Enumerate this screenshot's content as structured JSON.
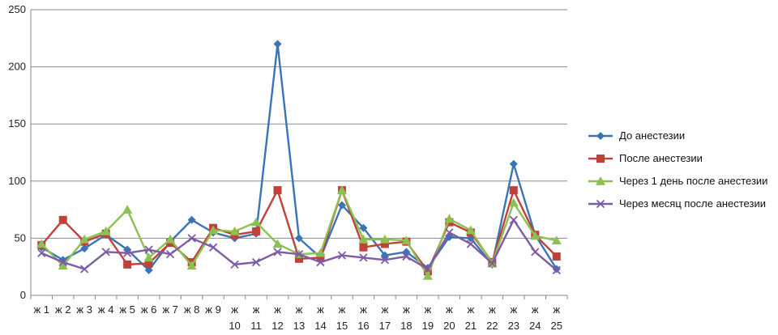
{
  "chart_data": {
    "type": "line",
    "categories": [
      [
        "ж 1"
      ],
      [
        "ж 2"
      ],
      [
        "ж 3"
      ],
      [
        "ж 4"
      ],
      [
        "ж 5"
      ],
      [
        "ж 6"
      ],
      [
        "ж 7"
      ],
      [
        "ж 8"
      ],
      [
        "ж 9"
      ],
      [
        "ж",
        "10"
      ],
      [
        "ж",
        "11"
      ],
      [
        "ж",
        "12"
      ],
      [
        "ж",
        "13"
      ],
      [
        "ж",
        "14"
      ],
      [
        "ж",
        "15"
      ],
      [
        "ж",
        "16"
      ],
      [
        "ж",
        "17"
      ],
      [
        "ж",
        "18"
      ],
      [
        "ж",
        "19"
      ],
      [
        "ж",
        "20"
      ],
      [
        "ж",
        "21"
      ],
      [
        "ж",
        "22"
      ],
      [
        "ж",
        "23"
      ],
      [
        "ж",
        "24"
      ],
      [
        "ж",
        "25"
      ]
    ],
    "ylim": [
      0,
      250
    ],
    "yticks": [
      0,
      50,
      100,
      150,
      200,
      250
    ],
    "grid": true,
    "legend_position": "right",
    "series": [
      {
        "name": "До анестезии",
        "color": "#3A74B6",
        "marker": "diamond",
        "values": [
          42,
          31,
          41,
          53,
          40,
          22,
          47,
          66,
          55,
          50,
          54,
          220,
          50,
          33,
          79,
          59,
          35,
          38,
          24,
          51,
          50,
          27,
          115,
          53,
          23
        ]
      },
      {
        "name": "После анестезии",
        "color": "#C2403A",
        "marker": "square",
        "values": [
          44,
          66,
          47,
          54,
          27,
          28,
          46,
          29,
          59,
          53,
          56,
          92,
          32,
          33,
          92,
          42,
          45,
          47,
          21,
          64,
          55,
          29,
          92,
          53,
          34
        ]
      },
      {
        "name": "Через 1 день после анестезии",
        "color": "#8CC152",
        "marker": "triangle",
        "values": [
          45,
          26,
          49,
          56,
          75,
          33,
          49,
          26,
          57,
          56,
          64,
          45,
          36,
          37,
          92,
          49,
          49,
          48,
          17,
          67,
          57,
          28,
          81,
          52,
          48
        ]
      },
      {
        "name": "Через месяц после анестезии",
        "color": "#7E5CA5",
        "marker": "x",
        "values": [
          37,
          29,
          23,
          38,
          37,
          40,
          36,
          50,
          42,
          27,
          29,
          38,
          36,
          29,
          35,
          33,
          31,
          34,
          23,
          55,
          45,
          28,
          66,
          38,
          22
        ]
      }
    ]
  }
}
